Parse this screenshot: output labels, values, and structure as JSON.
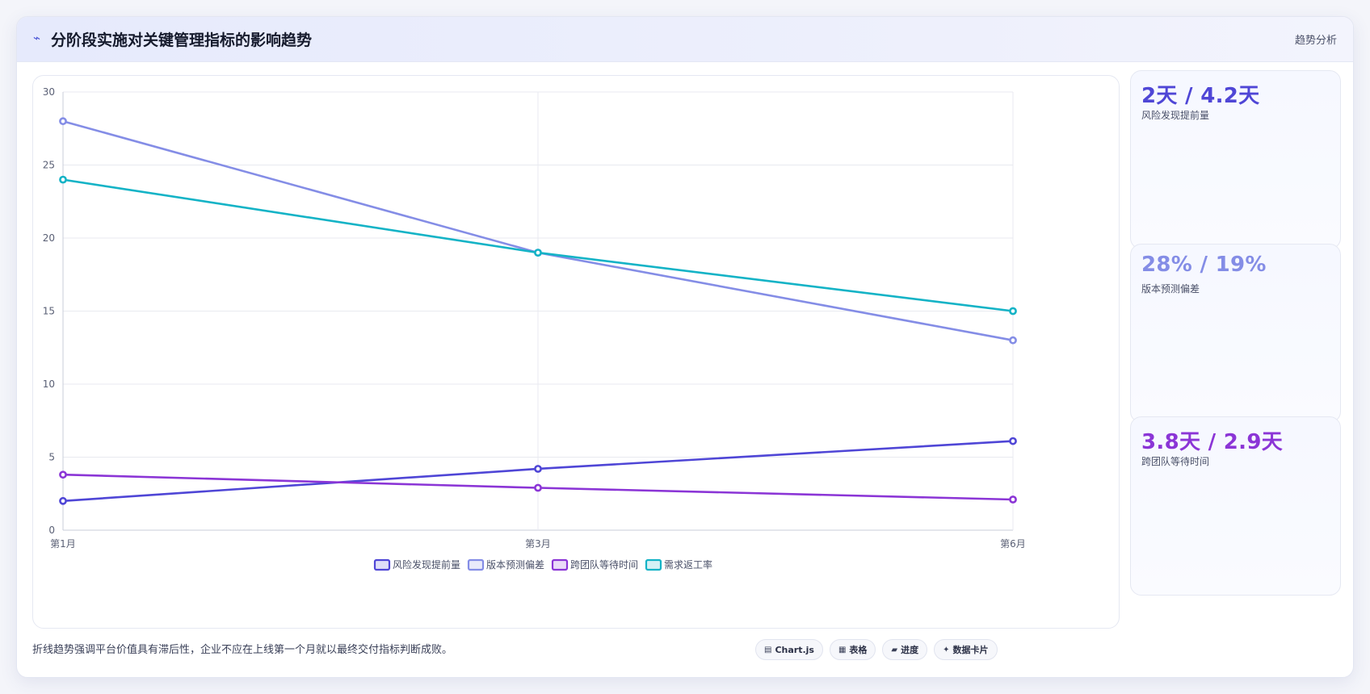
{
  "header": {
    "icon": "trend-icon",
    "title": "分阶段实施对关键管理指标的影响趋势",
    "tag": "趋势分析"
  },
  "chart_data": {
    "type": "line",
    "categories": [
      "第1月",
      "第3月",
      "第6月"
    ],
    "ylim": [
      0,
      30
    ],
    "yticks": [
      0,
      5,
      10,
      15,
      20,
      25,
      30
    ],
    "grid": true,
    "legend_position": "bottom",
    "series": [
      {
        "name": "风险发现提前量",
        "values": [
          2,
          4.2,
          6.1
        ],
        "color": "#4f46d6"
      },
      {
        "name": "版本预测偏差",
        "values": [
          28,
          19,
          13
        ],
        "color": "#848de6"
      },
      {
        "name": "跨团队等待时间",
        "values": [
          3.8,
          2.9,
          2.1
        ],
        "color": "#8b35d6"
      },
      {
        "name": "需求返工率",
        "values": [
          24,
          19,
          15
        ],
        "color": "#14b3c6"
      }
    ]
  },
  "stats": [
    {
      "value": "2天 / 4.2天",
      "label": "风险发现提前量",
      "color": "#4f46d6"
    },
    {
      "value": "28% / 19%",
      "label": "版本预测偏差",
      "color": "#848de6"
    },
    {
      "value": "3.8天 / 2.9天",
      "label": "跨团队等待时间",
      "color": "#8b35d6"
    }
  ],
  "footer": {
    "note": "折线趋势强调平台价值具有滞后性，企业不应在上线第一个月就以最终交付指标判断成败。",
    "buttons": [
      {
        "icon": "chart-icon",
        "glyph": "▤",
        "label": "Chart.js"
      },
      {
        "icon": "table-icon",
        "glyph": "▦",
        "label": "表格"
      },
      {
        "icon": "progress-icon",
        "glyph": "▰",
        "label": "进度"
      },
      {
        "icon": "card-icon",
        "glyph": "✦",
        "label": "数据卡片"
      }
    ]
  }
}
